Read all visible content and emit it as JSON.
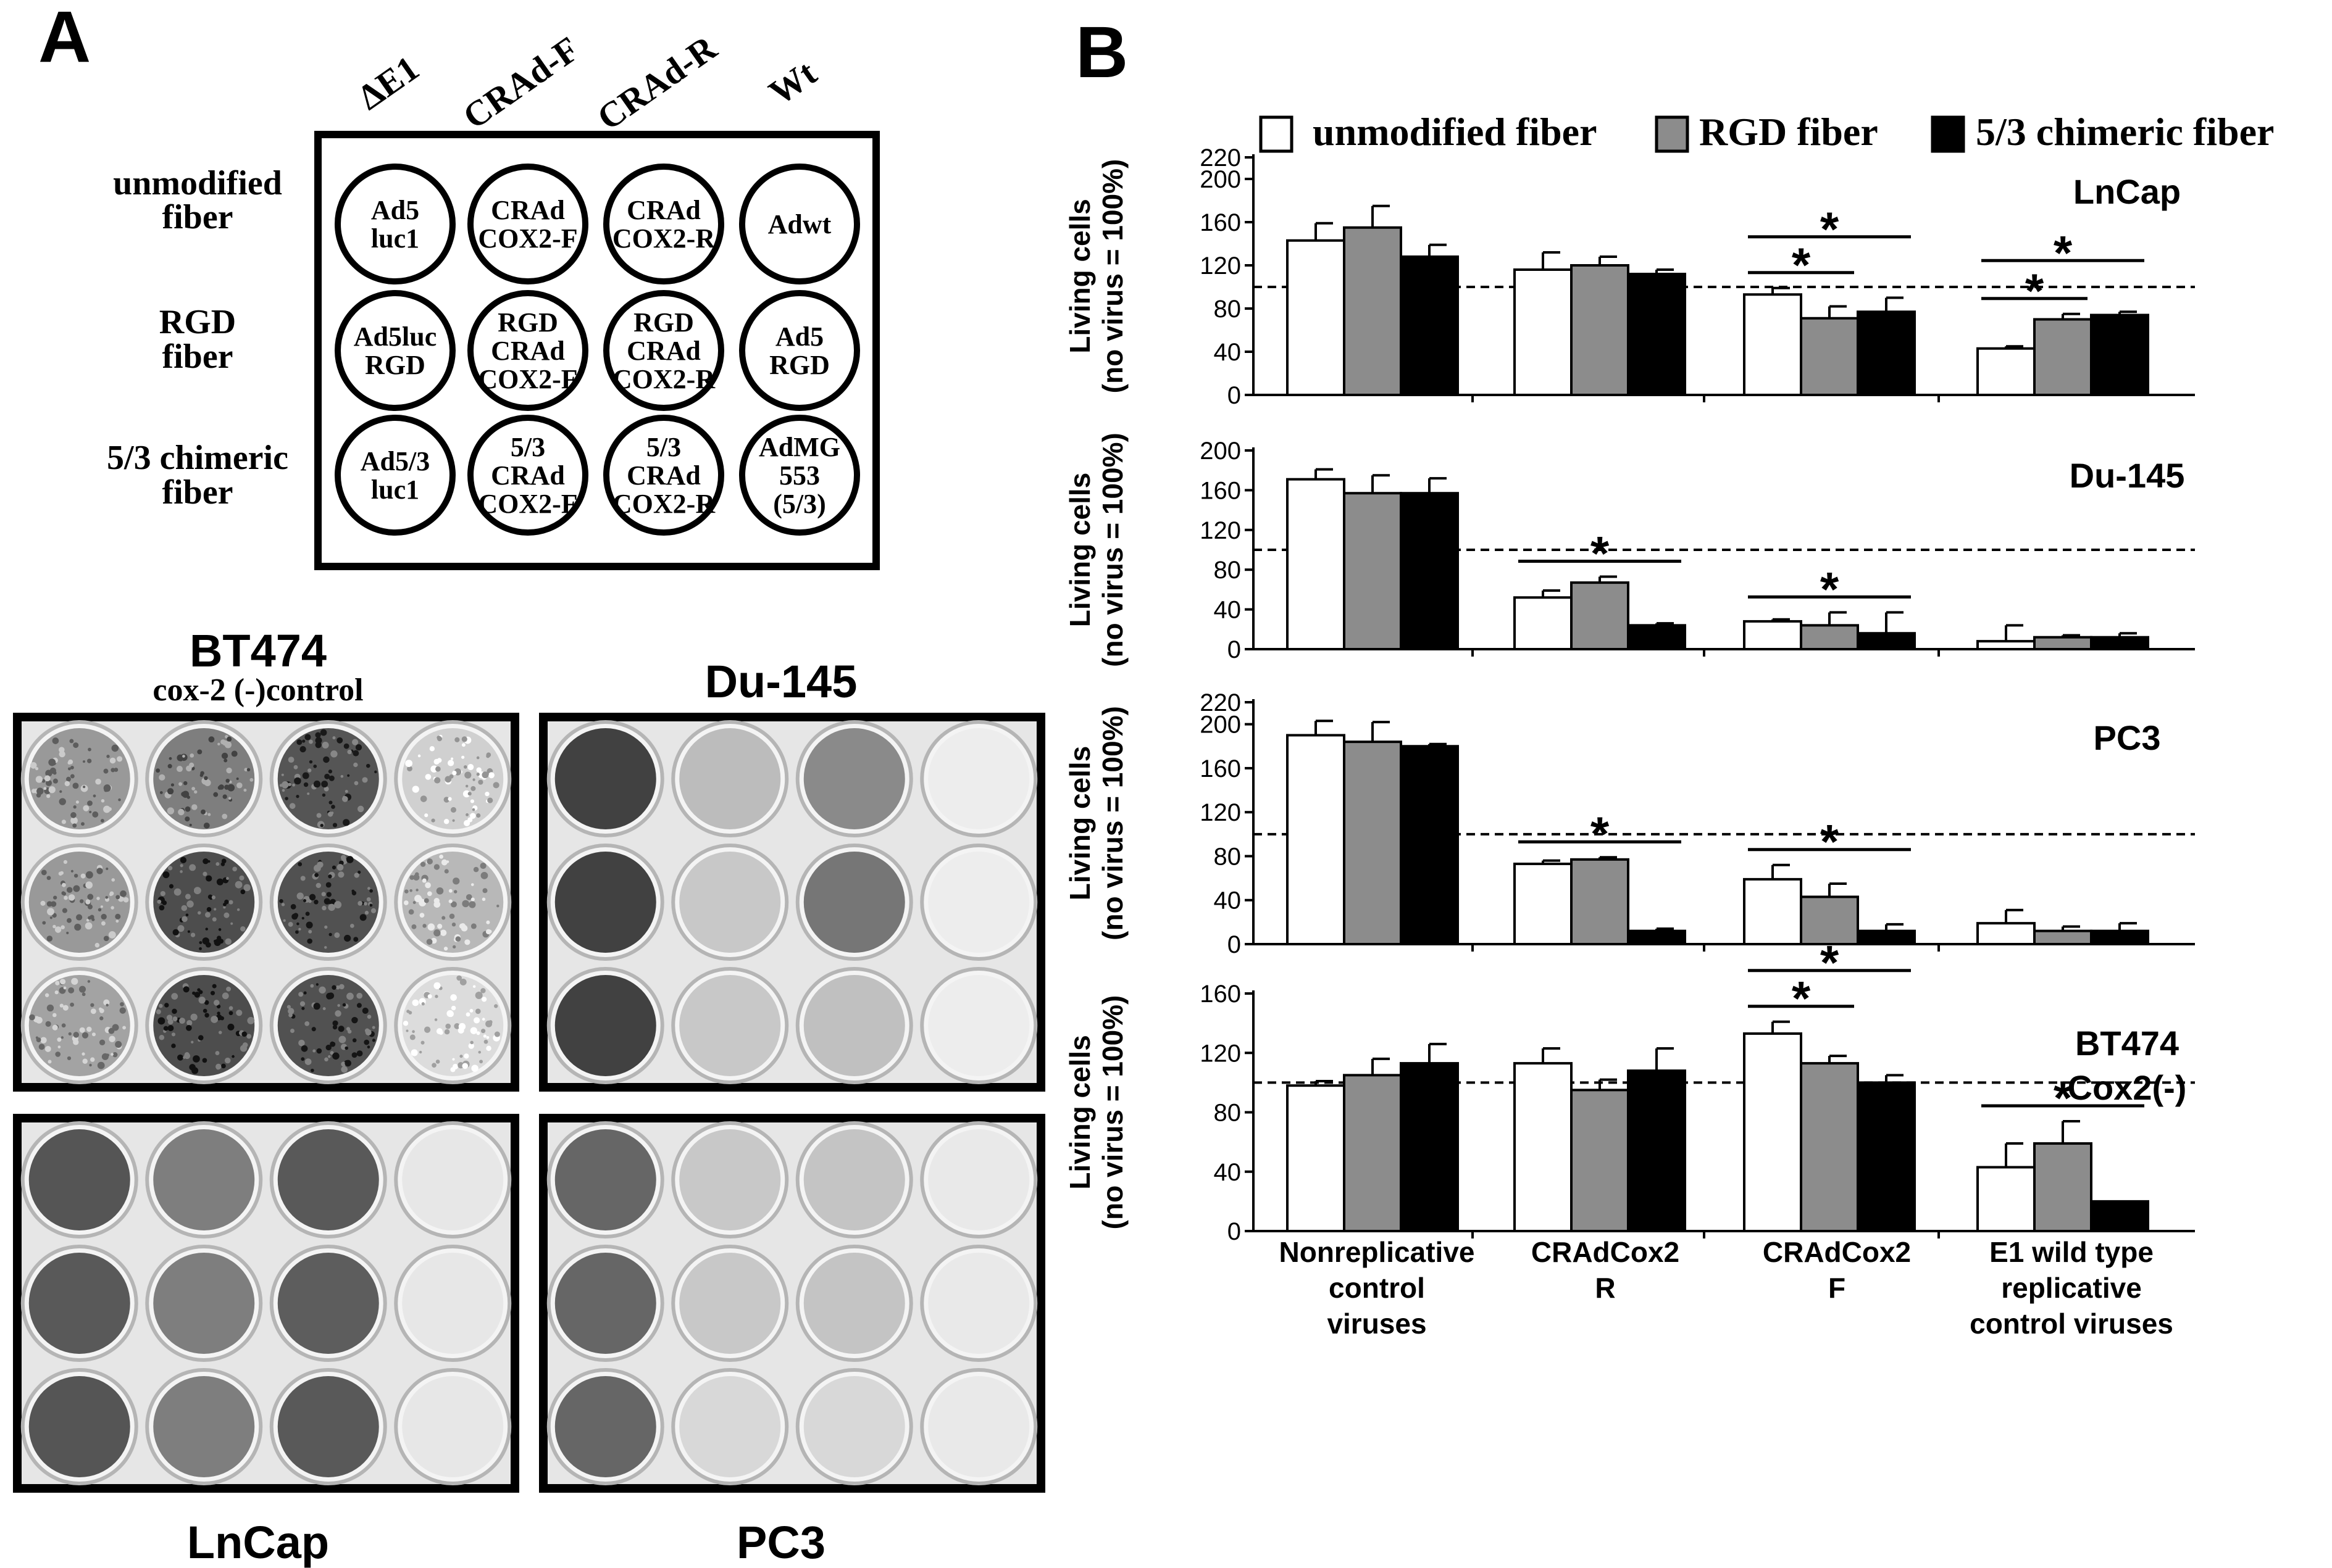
{
  "panel_a": {
    "label": "A",
    "columns": [
      "ΔE1",
      "CRAd-F",
      "CRAd-R",
      "Wt"
    ],
    "rows": [
      {
        "label_lines": [
          "unmodified",
          "fiber"
        ],
        "wells": [
          [
            "Ad5",
            "luc1"
          ],
          [
            "CRAd",
            "COX2-F"
          ],
          [
            "CRAd",
            "COX2-R"
          ],
          [
            "Adwt"
          ]
        ]
      },
      {
        "label_lines": [
          "RGD",
          "fiber"
        ],
        "wells": [
          [
            "Ad5luc",
            "RGD"
          ],
          [
            "RGD",
            "CRAd",
            "COX2-F"
          ],
          [
            "RGD",
            "CRAd",
            "COX2-R"
          ],
          [
            "Ad5",
            "RGD"
          ]
        ]
      },
      {
        "label_lines": [
          "5/3 chimeric",
          "fiber"
        ],
        "wells": [
          [
            "Ad5/3",
            "luc1"
          ],
          [
            "5/3",
            "CRAd",
            "COX2-F"
          ],
          [
            "5/3",
            "CRAd",
            "COX2-R"
          ],
          [
            "AdMG",
            "553",
            "(5/3)"
          ]
        ]
      }
    ],
    "plates": [
      {
        "title": "BT474",
        "subtitle": "cox-2 (-)control",
        "title_pos": "above",
        "shading": [
          [
            0.45,
            0.58,
            0.78,
            0.18
          ],
          [
            0.45,
            0.82,
            0.8,
            0.3
          ],
          [
            0.4,
            0.82,
            0.8,
            0.12
          ]
        ],
        "speckled": true
      },
      {
        "title": "Du-145",
        "subtitle": "",
        "title_pos": "above",
        "shading": [
          [
            0.88,
            0.28,
            0.52,
            0.04
          ],
          [
            0.88,
            0.22,
            0.62,
            0.04
          ],
          [
            0.88,
            0.22,
            0.26,
            0.04
          ]
        ],
        "speckled": false
      },
      {
        "title": "LnCap",
        "subtitle": "",
        "title_pos": "below",
        "shading": [
          [
            0.78,
            0.58,
            0.76,
            0.07
          ],
          [
            0.76,
            0.58,
            0.74,
            0.07
          ],
          [
            0.78,
            0.58,
            0.76,
            0.07
          ]
        ],
        "speckled": false
      },
      {
        "title": "PC3",
        "subtitle": "",
        "title_pos": "below",
        "shading": [
          [
            0.7,
            0.22,
            0.24,
            0.06
          ],
          [
            0.7,
            0.22,
            0.24,
            0.06
          ],
          [
            0.7,
            0.14,
            0.14,
            0.06
          ]
        ],
        "speckled": false
      }
    ]
  },
  "panel_b_label": "B",
  "colors": {
    "unmodified": "#ffffff",
    "rgd": "#8c8c8c",
    "chimeric": "#000000",
    "stroke": "#000000"
  },
  "chart_data": [
    {
      "type": "bar",
      "title": "LnCap",
      "categories": [
        "Nonreplicative control viruses",
        "CRAdCox2 R",
        "CRAdCox2 F",
        "E1 wild type replicative control viruses"
      ],
      "series": [
        {
          "name": "unmodified fiber",
          "values": [
            143,
            116,
            93,
            43
          ],
          "errors": [
            16,
            16,
            6,
            2
          ]
        },
        {
          "name": "RGD fiber",
          "values": [
            155,
            120,
            71,
            70
          ],
          "errors": [
            20,
            8,
            11,
            5
          ]
        },
        {
          "name": "5/3 chimeric fiber",
          "values": [
            128,
            112,
            77,
            74
          ],
          "errors": [
            11,
            4,
            13,
            3
          ]
        }
      ],
      "ylabel": "Living cells (no virus = 100%)",
      "yticks": [
        0,
        40,
        80,
        120,
        160,
        200,
        220
      ],
      "ylim": [
        0,
        220
      ],
      "reference_line": 100,
      "significance": [
        {
          "category": 2,
          "from": 0,
          "to": 1,
          "label": "*"
        },
        {
          "category": 2,
          "from": 0,
          "to": 2,
          "label": "*"
        },
        {
          "category": 3,
          "from": 0,
          "to": 1,
          "label": "*"
        },
        {
          "category": 3,
          "from": 0,
          "to": 2,
          "label": "*"
        }
      ]
    },
    {
      "type": "bar",
      "title": "Du-145",
      "categories": [
        "Nonreplicative control viruses",
        "CRAdCox2 R",
        "CRAdCox2 F",
        "E1 wild type replicative control viruses"
      ],
      "series": [
        {
          "name": "unmodified fiber",
          "values": [
            171,
            52,
            28,
            8
          ],
          "errors": [
            10,
            7,
            2,
            16
          ]
        },
        {
          "name": "RGD fiber",
          "values": [
            157,
            67,
            24,
            12
          ],
          "errors": [
            18,
            6,
            13,
            2
          ]
        },
        {
          "name": "5/3 chimeric fiber",
          "values": [
            157,
            24,
            16,
            12
          ],
          "errors": [
            15,
            2,
            21,
            4
          ]
        }
      ],
      "ylabel": "Living cells (no virus = 100%)",
      "yticks": [
        0,
        40,
        80,
        120,
        160,
        200
      ],
      "ylim": [
        0,
        200
      ],
      "reference_line": 100,
      "significance": [
        {
          "category": 1,
          "from": 0,
          "to": 2,
          "label": "*"
        },
        {
          "category": 2,
          "from": 0,
          "to": 2,
          "label": "*"
        }
      ]
    },
    {
      "type": "bar",
      "title": "PC3",
      "categories": [
        "Nonreplicative control viruses",
        "CRAdCox2 R",
        "CRAdCox2 F",
        "E1 wild type replicative control viruses"
      ],
      "series": [
        {
          "name": "unmodified fiber",
          "values": [
            190,
            73,
            59,
            19
          ],
          "errors": [
            13,
            3,
            13,
            12
          ]
        },
        {
          "name": "RGD fiber",
          "values": [
            184,
            77,
            43,
            12
          ],
          "errors": [
            18,
            2,
            12,
            4
          ]
        },
        {
          "name": "5/3 chimeric fiber",
          "values": [
            180,
            12,
            12,
            12
          ],
          "errors": [
            2,
            2,
            6,
            7
          ]
        }
      ],
      "ylabel": "Living cells (no virus = 100%)",
      "yticks": [
        0,
        40,
        80,
        120,
        160,
        200,
        220
      ],
      "ylim": [
        0,
        220
      ],
      "reference_line": 100,
      "significance": [
        {
          "category": 1,
          "from": 0,
          "to": 2,
          "label": "*"
        },
        {
          "category": 2,
          "from": 0,
          "to": 2,
          "label": "*"
        }
      ]
    },
    {
      "type": "bar",
      "title": "BT474 Cox2(-)",
      "title_lines": [
        "BT474",
        "Cox2(-)"
      ],
      "categories": [
        "Nonreplicative control viruses",
        "CRAdCox2 R",
        "CRAdCox2 F",
        "E1 wild type replicative control viruses"
      ],
      "category_lines": [
        [
          "Nonreplicative",
          "control",
          "viruses"
        ],
        [
          "CRAdCox2",
          "R"
        ],
        [
          "CRAdCox2",
          "F"
        ],
        [
          "E1 wild type",
          "replicative",
          "control viruses"
        ]
      ],
      "series": [
        {
          "name": "unmodified fiber",
          "values": [
            98,
            113,
            133,
            43
          ],
          "errors": [
            3,
            10,
            8,
            16
          ]
        },
        {
          "name": "RGD fiber",
          "values": [
            105,
            95,
            113,
            59
          ],
          "errors": [
            11,
            7,
            5,
            15
          ]
        },
        {
          "name": "5/3 chimeric fiber",
          "values": [
            113,
            108,
            100,
            20
          ],
          "errors": [
            13,
            15,
            5,
            0
          ]
        }
      ],
      "ylabel": "Living cells (no virus = 100%)",
      "yticks": [
        0,
        40,
        80,
        120,
        160
      ],
      "ylim": [
        0,
        160
      ],
      "reference_line": 100,
      "significance": [
        {
          "category": 2,
          "from": 0,
          "to": 1,
          "label": "*"
        },
        {
          "category": 2,
          "from": 0,
          "to": 2,
          "label": "*"
        },
        {
          "category": 3,
          "from": 0,
          "to": 2,
          "label": "*"
        }
      ]
    }
  ]
}
